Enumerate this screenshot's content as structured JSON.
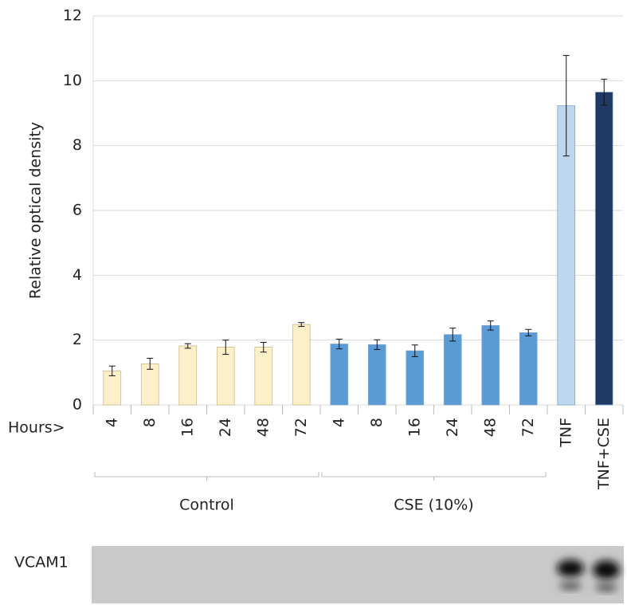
{
  "chart_data": {
    "type": "bar",
    "y_label": "Relative optical density",
    "x_prefix": "Hours>",
    "categories": [
      "4",
      "8",
      "16",
      "24",
      "48",
      "72",
      "4",
      "8",
      "16",
      "24",
      "48",
      "72",
      "TNF",
      "TNF+CSE"
    ],
    "group_labels": [
      "Control",
      "CSE (10%)"
    ],
    "series": [
      {
        "values": [
          1.05,
          1.27,
          1.82,
          1.78,
          1.78,
          2.48,
          1.88,
          1.86,
          1.67,
          2.17,
          2.45,
          2.23,
          9.23,
          9.65
        ],
        "errors": [
          0.15,
          0.17,
          0.07,
          0.22,
          0.15,
          0.06,
          0.15,
          0.15,
          0.18,
          0.2,
          0.14,
          0.1,
          1.55,
          0.4
        ],
        "colors": [
          "#fdefc8",
          "#fdefc8",
          "#fdefc8",
          "#fdefc8",
          "#fdefc8",
          "#fdefc8",
          "#5b9bd5",
          "#5b9bd5",
          "#5b9bd5",
          "#5b9bd5",
          "#5b9bd5",
          "#5b9bd5",
          "#bdd7ee",
          "#1f3864"
        ]
      }
    ],
    "ylim": [
      0,
      12
    ],
    "yticks": [
      0,
      2,
      4,
      6,
      8,
      10,
      12
    ],
    "grid": true,
    "blot_label": "VCAM1"
  }
}
